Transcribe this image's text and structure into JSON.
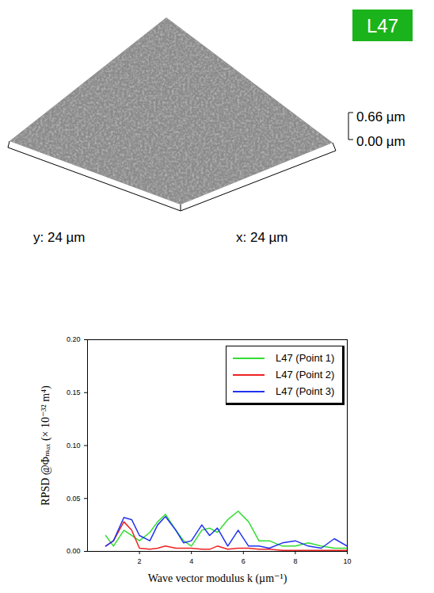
{
  "surface_image": {
    "label": "L47",
    "scale_max": "0.66 µm",
    "scale_min": "0.00 µm",
    "y_axis": "y: 24 µm",
    "x_axis": "x: 24 µm"
  },
  "chart_data": {
    "type": "line",
    "x_label": "Wave vector modulus k (µm⁻¹)",
    "y_label": "RPSD @Φₘₐₓ (× 10⁻³² m⁴)",
    "x": [
      0.7,
      1.0,
      1.4,
      1.7,
      2.0,
      2.4,
      2.7,
      3.0,
      3.4,
      3.7,
      4.0,
      4.4,
      4.7,
      5.0,
      5.4,
      5.8,
      6.2,
      6.6,
      7.0,
      7.5,
      8.0,
      8.5,
      9.0,
      9.5,
      10
    ],
    "series": [
      {
        "name": "L47 (Point 1)",
        "color": "#33dd33",
        "values": [
          0.015,
          0.005,
          0.02,
          0.015,
          0.01,
          0.018,
          0.028,
          0.035,
          0.02,
          0.01,
          0.005,
          0.02,
          0.022,
          0.018,
          0.03,
          0.038,
          0.028,
          0.01,
          0.01,
          0.005,
          0.005,
          0.008,
          0.005,
          0.003,
          0.003
        ]
      },
      {
        "name": "L47 (Point 2)",
        "color": "#ee2222",
        "values": [
          0.005,
          0.01,
          0.028,
          0.02,
          0.003,
          0.002,
          0.003,
          0.005,
          0.003,
          0.003,
          0.003,
          0.002,
          0.002,
          0.005,
          0.002,
          0.003,
          0.003,
          0.002,
          0.002,
          0.001,
          0.001,
          0.001,
          0.001,
          0.001,
          0.001
        ]
      },
      {
        "name": "L47 (Point 3)",
        "color": "#2233ee",
        "values": [
          0.005,
          0.01,
          0.032,
          0.03,
          0.015,
          0.01,
          0.025,
          0.033,
          0.02,
          0.008,
          0.01,
          0.025,
          0.015,
          0.022,
          0.005,
          0.02,
          0.005,
          0.005,
          0.003,
          0.008,
          0.01,
          0.005,
          0.003,
          0.012,
          0.005
        ]
      }
    ],
    "xlim": [
      0,
      10
    ],
    "xticks": [
      2,
      4,
      6,
      8,
      10
    ],
    "ylim": [
      0,
      0.2
    ],
    "yticks": [
      {
        "value": 0,
        "label": "0.00"
      },
      0.05,
      {
        "value": 0.1,
        "label": "0.10"
      },
      0.15,
      {
        "value": 0.2,
        "label": "0.20"
      }
    ],
    "legend": "top-right",
    "grid": false
  }
}
